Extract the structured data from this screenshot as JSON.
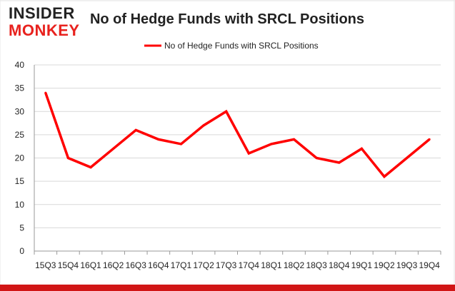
{
  "logo": {
    "line1": "INSIDER",
    "line2": "MONKEY"
  },
  "colors": {
    "series": "#ff0000",
    "logo_dark": "#222222",
    "logo_accent": "#e8221e",
    "border_top": "#e0e0e0",
    "border_bottom": "#d11515",
    "grid": "#d9d9d9",
    "axis": "#999999",
    "text": "#222222"
  },
  "chart_data": {
    "type": "line",
    "title": "No of Hedge Funds with SRCL Positions",
    "xlabel": "",
    "ylabel": "",
    "categories": [
      "15Q3",
      "15Q4",
      "16Q1",
      "16Q2",
      "16Q3",
      "16Q4",
      "17Q1",
      "17Q2",
      "17Q3",
      "17Q4",
      "18Q1",
      "18Q2",
      "18Q3",
      "18Q4",
      "19Q1",
      "19Q2",
      "19Q3",
      "19Q4"
    ],
    "series": [
      {
        "name": "No of Hedge Funds with SRCL Positions",
        "values": [
          34,
          20,
          18,
          22,
          26,
          24,
          23,
          27,
          30,
          21,
          23,
          24,
          20,
          19,
          22,
          16,
          20,
          24
        ]
      }
    ],
    "ylim": [
      0,
      40
    ],
    "yticks": [
      0,
      5,
      10,
      15,
      20,
      25,
      30,
      35,
      40
    ],
    "grid": "horizontal",
    "legend": "top-center"
  }
}
